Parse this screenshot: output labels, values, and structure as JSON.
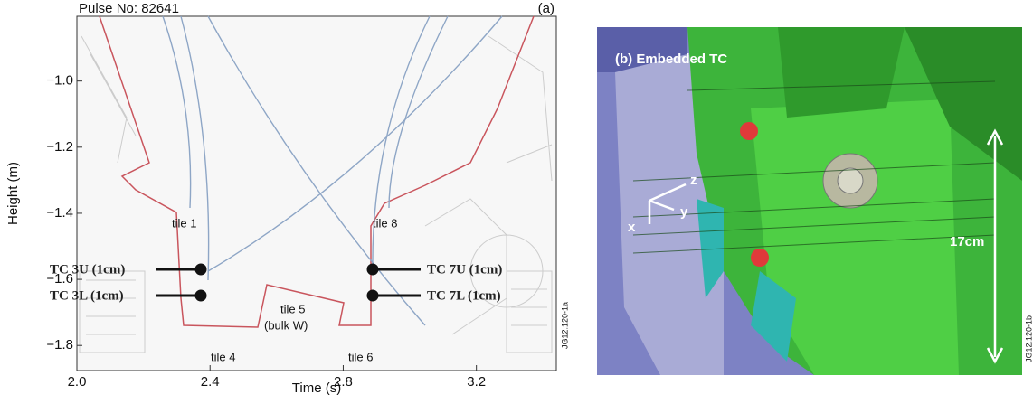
{
  "panel_a": {
    "title": "Pulse No: 82641",
    "label": "(a)",
    "xlabel": "Time (s)",
    "ylabel": "Height (m)",
    "xlim": [
      2.0,
      3.44
    ],
    "ylim": [
      -1.876,
      -0.804
    ],
    "xticks": [
      {
        "value": 2.0,
        "label": "2.0"
      },
      {
        "value": 2.4,
        "label": "2.4"
      },
      {
        "value": 2.8,
        "label": "2.8"
      },
      {
        "value": 3.2,
        "label": "3.2"
      }
    ],
    "yticks": [
      {
        "value": -1.0,
        "label": "−1.0"
      },
      {
        "value": -1.2,
        "label": "−1.2"
      },
      {
        "value": -1.4,
        "label": "−1.4"
      },
      {
        "value": -1.6,
        "label": "−1.6"
      },
      {
        "value": -1.8,
        "label": "−1.8"
      }
    ],
    "annotations": {
      "tile1": "tile 1",
      "tile8": "tile 8",
      "tile4": "tile 4",
      "tile5": "tile 5",
      "bulk": "(bulk W)",
      "tile6": "tile 6",
      "tc3u": "TC 3U (1cm)",
      "tc3l": "TC 3L (1cm)",
      "tc7u": "TC 7U (1cm)",
      "tc7l": "TC 7L (1cm)"
    },
    "code": "JG12.120-1a"
  },
  "panel_b": {
    "title": "(b) Embedded TC",
    "dimension": "17cm",
    "axis_z": "z",
    "axis_y": "y",
    "axis_x": "x",
    "code": "JG12.120-1b"
  }
}
